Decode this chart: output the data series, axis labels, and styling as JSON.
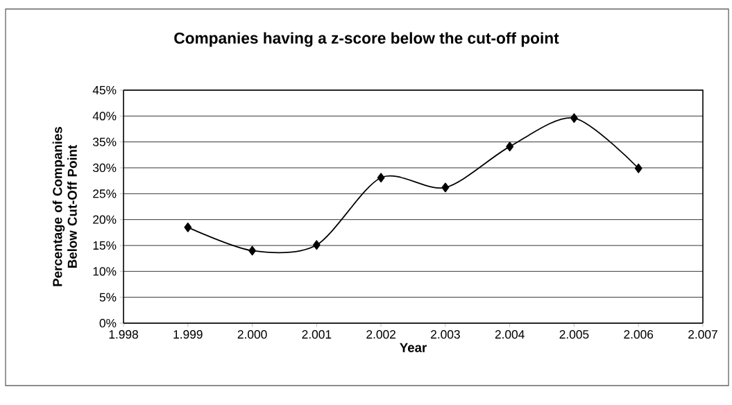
{
  "chart_data": {
    "type": "line",
    "title": "Companies having a z-score below the cut-off point",
    "xlabel": "Year",
    "ylabel": "Percentage of Companies Below Cut-Off Point",
    "x": [
      1999,
      2000,
      2001,
      2002,
      2003,
      2004,
      2005,
      2006
    ],
    "series": [
      {
        "color": "#000000",
        "values": [
          18.5,
          14.0,
          15.1,
          28.1,
          26.2,
          34.1,
          39.6,
          29.9
        ]
      }
    ],
    "xlim": [
      1998,
      2007
    ],
    "xticks": [
      {
        "value": 1998,
        "label": "1.998"
      },
      {
        "value": 1999,
        "label": "1.999"
      },
      {
        "value": 2000,
        "label": "2.000"
      },
      {
        "value": 2001,
        "label": "2.001"
      },
      {
        "value": 2002,
        "label": "2.002"
      },
      {
        "value": 2003,
        "label": "2.003"
      },
      {
        "value": 2004,
        "label": "2.004"
      },
      {
        "value": 2005,
        "label": "2.005"
      },
      {
        "value": 2006,
        "label": "2.006"
      },
      {
        "value": 2007,
        "label": "2.007"
      }
    ],
    "ylim": [
      0,
      45
    ],
    "yticks": [
      {
        "value": 0,
        "label": "0%"
      },
      {
        "value": 5,
        "label": "5%"
      },
      {
        "value": 10,
        "label": "10%"
      },
      {
        "value": 15,
        "label": "15%"
      },
      {
        "value": 20,
        "label": "20%"
      },
      {
        "value": 25,
        "label": "25%"
      },
      {
        "value": 30,
        "label": "30%"
      },
      {
        "value": 35,
        "label": "35%"
      },
      {
        "value": 40,
        "label": "40%"
      },
      {
        "value": 45,
        "label": "45%"
      }
    ],
    "grid": "y",
    "marker": "diamond",
    "line_style": "solid"
  }
}
